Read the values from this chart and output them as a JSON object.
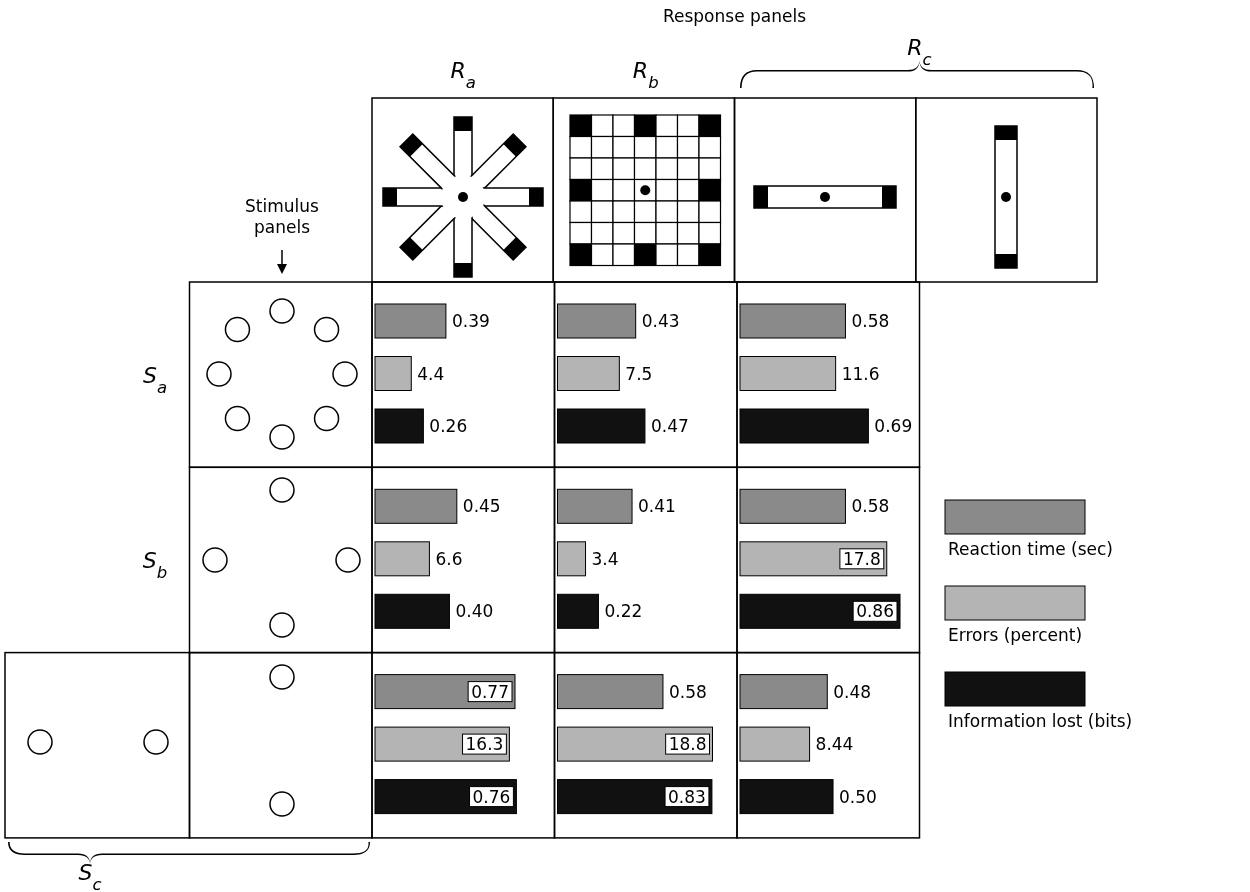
{
  "chart_data": [
    {
      "type": "other",
      "annotations": [
        "Response panels",
        "R$_{a}$",
        "R$_{b}$",
        "R$_{c}$",
        "Stimulus panels",
        "S$_{a}$",
        "S$_{b}$",
        "S$_{c}$"
      ]
    },
    {
      "type": "bar",
      "orientation": "horizontal",
      "categories": [
        null,
        null,
        null
      ],
      "legend": "right",
      "series": [
        {
          "name": "Reaction time (sec)",
          "color": "#8a8a8a",
          "values": [
            0.39,
            0.45,
            0.77
          ],
          "value_labels": [
            "0.39",
            "0.45",
            "0.77"
          ]
        }
      ]
    },
    {
      "type": "bar",
      "orientation": "horizontal",
      "categories": [
        null,
        null,
        null
      ],
      "legend": "right",
      "series": [
        {
          "name": "Errors (percent)",
          "color": "#b4b4b4",
          "values": [
            4.4,
            6.6,
            16.3
          ],
          "value_labels": [
            "4.4",
            "6.6",
            "16.3"
          ]
        }
      ]
    },
    {
      "type": "bar",
      "orientation": "horizontal",
      "categories": [
        null,
        null,
        null
      ],
      "legend": "right",
      "series": [
        {
          "name": "Information lost (bits)",
          "color": "#111111",
          "values": [
            0.26,
            0.4,
            0.76
          ],
          "value_labels": [
            "0.26",
            "0.40",
            "0.76"
          ]
        }
      ]
    },
    {
      "type": "bar",
      "orientation": "horizontal",
      "categories": [
        null,
        null,
        null
      ],
      "series": [
        {
          "color": "#8a8a8a",
          "values": [
            0.43,
            0.41,
            0.58
          ],
          "value_labels": [
            "0.43",
            "0.41",
            "0.58"
          ]
        }
      ]
    },
    {
      "type": "bar",
      "orientation": "horizontal",
      "categories": [
        null,
        null,
        null
      ],
      "series": [
        {
          "color": "#b4b4b4",
          "values": [
            7.5,
            3.4,
            18.8
          ],
          "value_labels": [
            "7.5",
            "3.4",
            "18.8"
          ]
        }
      ]
    },
    {
      "type": "bar",
      "orientation": "horizontal",
      "categories": [
        null,
        null,
        null
      ],
      "series": [
        {
          "color": "#111111",
          "values": [
            0.47,
            0.22,
            0.83
          ],
          "value_labels": [
            "0.47",
            "0.22",
            "0.83"
          ]
        }
      ]
    },
    {
      "type": "bar",
      "orientation": "horizontal",
      "categories": [
        null,
        null,
        null
      ],
      "series": [
        {
          "color": "#8a8a8a",
          "values": [
            0.58,
            0.58,
            0.48
          ],
          "value_labels": [
            "0.58",
            "0.58",
            "0.48"
          ]
        }
      ]
    },
    {
      "type": "bar",
      "orientation": "horizontal",
      "categories": [
        null,
        null,
        null
      ],
      "series": [
        {
          "color": "#b4b4b4",
          "values": [
            11.6,
            17.8,
            8.44
          ],
          "value_labels": [
            "11.6",
            "17.8",
            "8.44"
          ]
        }
      ]
    },
    {
      "type": "bar",
      "orientation": "horizontal",
      "categories": [
        null,
        null,
        null
      ],
      "series": [
        {
          "color": "#111111",
          "values": [
            0.69,
            0.86,
            0.5
          ],
          "value_labels": [
            "0.69",
            "0.86",
            "0.50"
          ]
        }
      ]
    }
  ]
}
